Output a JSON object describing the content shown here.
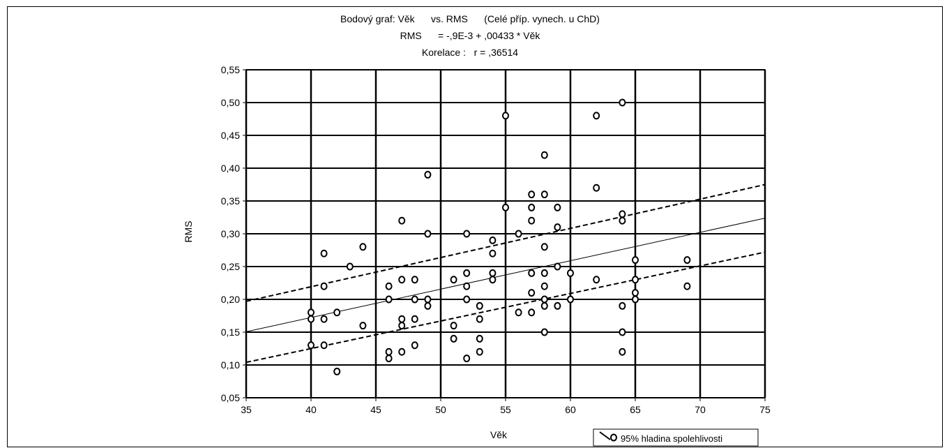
{
  "chart_data": {
    "type": "scatter",
    "title_lines": [
      "Bodový graf: Věk      vs. RMS      (Celé příp. vynech. u ChD)",
      "RMS      = -,9E-3 + ,00433 * Věk",
      "Korelace :   r = ,36514"
    ],
    "xlabel": "Věk",
    "ylabel": "RMS",
    "xlim": [
      35,
      75
    ],
    "ylim": [
      0.05,
      0.55
    ],
    "x_ticks": [
      35,
      40,
      45,
      50,
      55,
      60,
      65,
      70,
      75
    ],
    "x_tick_labels": [
      "35",
      "40",
      "45",
      "50",
      "55",
      "60",
      "65",
      "70",
      "75"
    ],
    "y_ticks": [
      0.05,
      0.1,
      0.15,
      0.2,
      0.25,
      0.3,
      0.35,
      0.4,
      0.45,
      0.5,
      0.55
    ],
    "y_tick_labels": [
      "0,05",
      "0,10",
      "0,15",
      "0,20",
      "0,25",
      "0,30",
      "0,35",
      "0,40",
      "0,45",
      "0,50",
      "0,55"
    ],
    "grid": true,
    "legend_position": "bottom-right",
    "legend_label": "95% hladina spolehlivosti",
    "regression": {
      "intercept": -0.0009,
      "slope": 0.00433,
      "r": 0.36514
    },
    "confidence_band": {
      "upper": [
        [
          35,
          0.197
        ],
        [
          75,
          0.375
        ]
      ],
      "lower": [
        [
          35,
          0.104
        ],
        [
          75,
          0.272
        ]
      ]
    },
    "points": [
      [
        40,
        0.18
      ],
      [
        40,
        0.17
      ],
      [
        40,
        0.13
      ],
      [
        41,
        0.27
      ],
      [
        41,
        0.22
      ],
      [
        41,
        0.17
      ],
      [
        41,
        0.13
      ],
      [
        42,
        0.18
      ],
      [
        42,
        0.09
      ],
      [
        43,
        0.25
      ],
      [
        44,
        0.28
      ],
      [
        44,
        0.16
      ],
      [
        46,
        0.22
      ],
      [
        46,
        0.2
      ],
      [
        46,
        0.12
      ],
      [
        46,
        0.11
      ],
      [
        47,
        0.32
      ],
      [
        47,
        0.23
      ],
      [
        47,
        0.17
      ],
      [
        47,
        0.16
      ],
      [
        47,
        0.12
      ],
      [
        48,
        0.23
      ],
      [
        48,
        0.2
      ],
      [
        48,
        0.17
      ],
      [
        48,
        0.13
      ],
      [
        49,
        0.39
      ],
      [
        49,
        0.3
      ],
      [
        49,
        0.2
      ],
      [
        49,
        0.19
      ],
      [
        51,
        0.23
      ],
      [
        51,
        0.16
      ],
      [
        51,
        0.14
      ],
      [
        52,
        0.3
      ],
      [
        52,
        0.24
      ],
      [
        52,
        0.22
      ],
      [
        52,
        0.2
      ],
      [
        52,
        0.11
      ],
      [
        53,
        0.19
      ],
      [
        53,
        0.17
      ],
      [
        53,
        0.14
      ],
      [
        53,
        0.12
      ],
      [
        54,
        0.29
      ],
      [
        54,
        0.27
      ],
      [
        54,
        0.24
      ],
      [
        54,
        0.23
      ],
      [
        55,
        0.48
      ],
      [
        55,
        0.34
      ],
      [
        56,
        0.3
      ],
      [
        56,
        0.18
      ],
      [
        57,
        0.36
      ],
      [
        57,
        0.34
      ],
      [
        57,
        0.32
      ],
      [
        57,
        0.24
      ],
      [
        57,
        0.21
      ],
      [
        57,
        0.18
      ],
      [
        58,
        0.42
      ],
      [
        58,
        0.36
      ],
      [
        58,
        0.28
      ],
      [
        58,
        0.24
      ],
      [
        58,
        0.22
      ],
      [
        58,
        0.2
      ],
      [
        58,
        0.19
      ],
      [
        58,
        0.15
      ],
      [
        59,
        0.34
      ],
      [
        59,
        0.31
      ],
      [
        59,
        0.25
      ],
      [
        59,
        0.19
      ],
      [
        60,
        0.24
      ],
      [
        60,
        0.2
      ],
      [
        62,
        0.48
      ],
      [
        62,
        0.37
      ],
      [
        62,
        0.23
      ],
      [
        64,
        0.5
      ],
      [
        64,
        0.33
      ],
      [
        64,
        0.32
      ],
      [
        64,
        0.19
      ],
      [
        64,
        0.15
      ],
      [
        64,
        0.12
      ],
      [
        65,
        0.26
      ],
      [
        65,
        0.23
      ],
      [
        65,
        0.21
      ],
      [
        65,
        0.2
      ],
      [
        69,
        0.26
      ],
      [
        69,
        0.22
      ]
    ]
  }
}
